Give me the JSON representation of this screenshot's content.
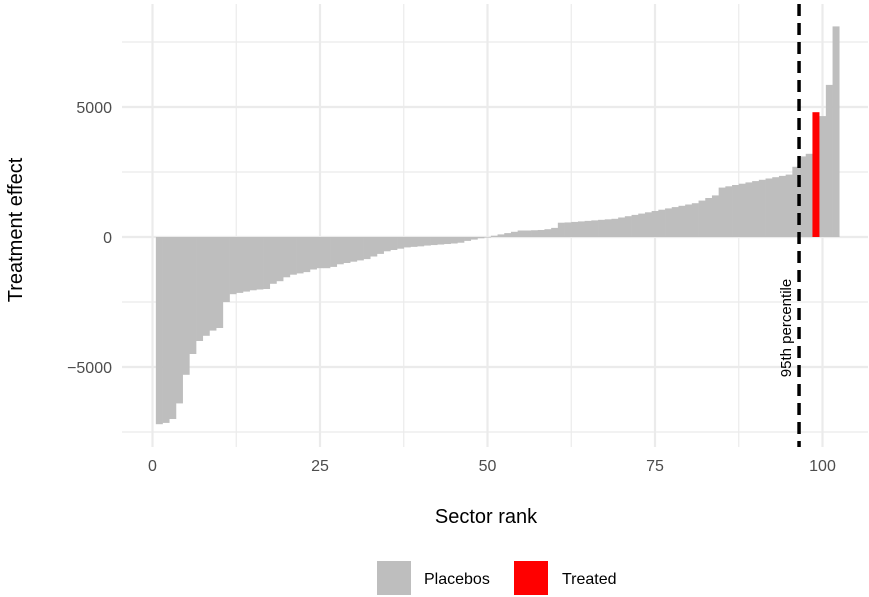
{
  "chart_data": {
    "type": "bar",
    "title": "",
    "xlabel": "Sector rank",
    "ylabel": "Treatment effect",
    "xlim": [
      -2.5,
      106
    ],
    "ylim": [
      -7700,
      8700
    ],
    "x_ticks": [
      0,
      25,
      50,
      75,
      100
    ],
    "x_tick_labels": [
      "0",
      "25",
      "50",
      "75",
      "100"
    ],
    "y_ticks": [
      -5000,
      0,
      5000
    ],
    "y_tick_labels": [
      "−5000",
      "0",
      "5000"
    ],
    "grid": true,
    "legend_position": "bottom",
    "legend": [
      {
        "label": "Placebos",
        "color": "#bebebe"
      },
      {
        "label": "Treated",
        "color": "#ff0000"
      }
    ],
    "series": [
      {
        "name": "Placebos",
        "color": "#bebebe",
        "x": [
          1,
          2,
          3,
          4,
          5,
          6,
          7,
          8,
          9,
          10,
          11,
          12,
          13,
          14,
          15,
          16,
          17,
          18,
          19,
          20,
          21,
          22,
          23,
          24,
          25,
          26,
          27,
          28,
          29,
          30,
          31,
          32,
          33,
          34,
          35,
          36,
          37,
          38,
          39,
          40,
          41,
          42,
          43,
          44,
          45,
          46,
          47,
          48,
          49,
          50,
          51,
          52,
          53,
          54,
          55,
          56,
          57,
          58,
          59,
          60,
          61,
          62,
          63,
          64,
          65,
          66,
          67,
          68,
          69,
          70,
          71,
          72,
          73,
          74,
          75,
          76,
          77,
          78,
          79,
          80,
          81,
          82,
          83,
          84,
          85,
          86,
          87,
          88,
          89,
          90,
          91,
          92,
          93,
          94,
          95,
          96,
          97,
          98,
          100,
          101
        ],
        "values": [
          -7200,
          -7150,
          -7000,
          -6400,
          -5300,
          -4500,
          -4000,
          -3800,
          -3600,
          -3500,
          -2500,
          -2200,
          -2150,
          -2100,
          -2050,
          -2020,
          -2000,
          -1800,
          -1700,
          -1550,
          -1450,
          -1400,
          -1350,
          -1250,
          -1200,
          -1200,
          -1150,
          -1050,
          -1000,
          -950,
          -900,
          -850,
          -750,
          -650,
          -550,
          -500,
          -450,
          -400,
          -380,
          -360,
          -330,
          -310,
          -290,
          -270,
          -250,
          -220,
          -150,
          -100,
          -50,
          -10,
          50,
          100,
          150,
          200,
          250,
          250,
          260,
          270,
          300,
          350,
          550,
          560,
          580,
          600,
          620,
          640,
          660,
          680,
          700,
          750,
          800,
          850,
          900,
          950,
          1000,
          1050,
          1100,
          1150,
          1200,
          1250,
          1300,
          1400,
          1500,
          1600,
          1900,
          1950,
          2000,
          2050,
          2100,
          2150,
          2200,
          2250,
          2300,
          2350,
          2400,
          2700,
          3100,
          3200,
          4650,
          5850
        ]
      },
      {
        "name": "Treated",
        "color": "#ff0000",
        "x": [
          99
        ],
        "values": [
          4800
        ]
      },
      {
        "name": "Placebos",
        "color": "#bebebe",
        "x": [
          102
        ],
        "values": [
          8100
        ]
      }
    ],
    "vline": {
      "x": 96.5,
      "label": "95th percentile",
      "style": "dashed",
      "color": "#000000"
    }
  }
}
